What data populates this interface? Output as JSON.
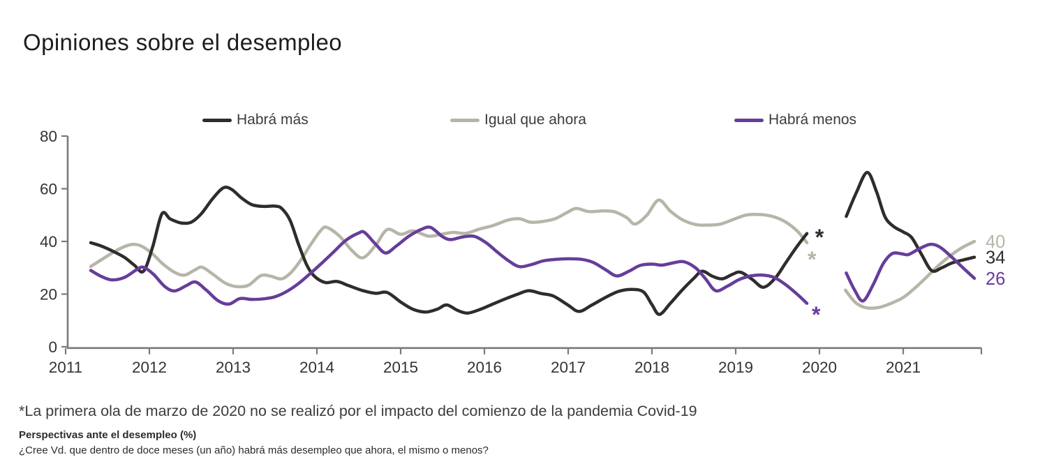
{
  "title": "Opiniones sobre el desempleo",
  "legend": [
    {
      "label": "Habrá más",
      "color": "#2f2c2b"
    },
    {
      "label": "Igual que ahora",
      "color": "#b6b5a7"
    },
    {
      "label": "Habrá menos",
      "color": "#663d9a"
    }
  ],
  "footnote": "*La primera ola de marzo de 2020 no se realizó por el impacto del comienzo de la pandemia Covid-19",
  "source_title": "Perspectivas ante el desempleo (%)",
  "source_question": "¿Cree Vd. que dentro de doce meses (un año) habrá más desempleo que ahora, el mismo o menos?",
  "axis_color": "#7a7a7a",
  "tick_label_color": "#333331",
  "chart_data": {
    "type": "line",
    "title": "Opiniones sobre el desempleo",
    "xlabel": "",
    "ylabel": "",
    "legend_position": "top",
    "grid": false,
    "xlim": [
      2011,
      2021.95
    ],
    "ylim": [
      0,
      80
    ],
    "x_tick_years": [
      2011,
      2012,
      2013,
      2014,
      2015,
      2016,
      2017,
      2018,
      2019,
      2020,
      2021
    ],
    "x_tick_labels": [
      "2011",
      "2012",
      "2013",
      "2014",
      "2015",
      "2016",
      "2017",
      "2018",
      "2019",
      "2020",
      "2021"
    ],
    "y_ticks": [
      0,
      20,
      40,
      60,
      80
    ],
    "y_tick_labels": [
      "0",
      "20",
      "40",
      "60",
      "80"
    ],
    "gap_note": "Gap in all series during first wave of March 2020 (survey not conducted), marked with asterisks",
    "asterisks": [
      {
        "series": "Habrá más",
        "symbol": "*",
        "color": "#2f2c2b",
        "x": 2020.0,
        "v": 44.2
      },
      {
        "series": "Igual que ahora",
        "symbol": "*",
        "color": "#b6b5a7",
        "x": 2019.91,
        "v": 35.8
      },
      {
        "series": "Habrá menos",
        "symbol": "*",
        "color": "#663d9a",
        "x": 2019.96,
        "v": 14.8
      }
    ],
    "series": [
      {
        "name": "Habrá más",
        "color": "#2f2c2b",
        "end_label": {
          "text": "34",
          "v": 34
        },
        "segments": [
          [
            [
              2011.3,
              39.5
            ],
            [
              2011.42,
              38.3
            ],
            [
              2011.55,
              36.5
            ],
            [
              2011.7,
              34.0
            ],
            [
              2011.82,
              31.0
            ],
            [
              2011.93,
              28.7
            ],
            [
              2012.04,
              38.0
            ],
            [
              2012.15,
              50.5
            ],
            [
              2012.25,
              48.5
            ],
            [
              2012.38,
              47.0
            ],
            [
              2012.5,
              47.3
            ],
            [
              2012.62,
              50.5
            ],
            [
              2012.75,
              56.0
            ],
            [
              2012.88,
              60.3
            ],
            [
              2012.98,
              59.8
            ],
            [
              2013.1,
              56.5
            ],
            [
              2013.22,
              54.0
            ],
            [
              2013.35,
              53.3
            ],
            [
              2013.5,
              53.4
            ],
            [
              2013.58,
              52.5
            ],
            [
              2013.68,
              48.0
            ],
            [
              2013.78,
              39.0
            ],
            [
              2013.88,
              31.0
            ],
            [
              2013.97,
              26.8
            ],
            [
              2014.1,
              24.4
            ],
            [
              2014.24,
              24.8
            ],
            [
              2014.38,
              23.2
            ],
            [
              2014.55,
              21.3
            ],
            [
              2014.7,
              20.3
            ],
            [
              2014.84,
              20.6
            ],
            [
              2015.0,
              17.0
            ],
            [
              2015.15,
              14.2
            ],
            [
              2015.3,
              13.2
            ],
            [
              2015.44,
              14.3
            ],
            [
              2015.55,
              15.9
            ],
            [
              2015.68,
              13.8
            ],
            [
              2015.8,
              12.8
            ],
            [
              2015.95,
              14.2
            ],
            [
              2016.1,
              16.2
            ],
            [
              2016.25,
              18.2
            ],
            [
              2016.4,
              20.0
            ],
            [
              2016.53,
              21.3
            ],
            [
              2016.68,
              20.2
            ],
            [
              2016.82,
              19.3
            ],
            [
              2017.0,
              15.8
            ],
            [
              2017.13,
              13.4
            ],
            [
              2017.28,
              15.8
            ],
            [
              2017.45,
              18.8
            ],
            [
              2017.6,
              21.0
            ],
            [
              2017.76,
              21.8
            ],
            [
              2017.9,
              20.8
            ],
            [
              2018.0,
              16.0
            ],
            [
              2018.09,
              12.3
            ],
            [
              2018.22,
              16.5
            ],
            [
              2018.36,
              21.5
            ],
            [
              2018.5,
              26.0
            ],
            [
              2018.6,
              28.7
            ],
            [
              2018.72,
              26.8
            ],
            [
              2018.84,
              25.8
            ],
            [
              2018.96,
              27.5
            ],
            [
              2019.06,
              28.3
            ],
            [
              2019.2,
              25.5
            ],
            [
              2019.33,
              22.6
            ],
            [
              2019.47,
              26.0
            ],
            [
              2019.6,
              32.0
            ],
            [
              2019.73,
              38.0
            ],
            [
              2019.85,
              43.0
            ]
          ],
          [
            [
              2020.32,
              49.5
            ],
            [
              2020.44,
              58.5
            ],
            [
              2020.57,
              66.2
            ],
            [
              2020.68,
              59.0
            ],
            [
              2020.78,
              49.5
            ],
            [
              2020.88,
              45.8
            ],
            [
              2021.0,
              43.6
            ],
            [
              2021.1,
              41.5
            ],
            [
              2021.22,
              35.0
            ],
            [
              2021.34,
              28.9
            ],
            [
              2021.46,
              30.0
            ],
            [
              2021.58,
              31.8
            ],
            [
              2021.72,
              33.0
            ],
            [
              2021.85,
              34.0
            ]
          ]
        ]
      },
      {
        "name": "Igual que ahora",
        "color": "#b6b5a7",
        "end_label": {
          "text": "40",
          "v": 40
        },
        "segments": [
          [
            [
              2011.3,
              30.5
            ],
            [
              2011.45,
              33.5
            ],
            [
              2011.62,
              36.8
            ],
            [
              2011.78,
              38.8
            ],
            [
              2011.9,
              38.3
            ],
            [
              2012.03,
              35.5
            ],
            [
              2012.16,
              31.5
            ],
            [
              2012.3,
              28.3
            ],
            [
              2012.42,
              27.2
            ],
            [
              2012.55,
              29.3
            ],
            [
              2012.63,
              30.2
            ],
            [
              2012.76,
              27.5
            ],
            [
              2012.9,
              24.3
            ],
            [
              2013.03,
              22.9
            ],
            [
              2013.18,
              23.3
            ],
            [
              2013.33,
              27.0
            ],
            [
              2013.45,
              26.8
            ],
            [
              2013.58,
              25.8
            ],
            [
              2013.7,
              28.5
            ],
            [
              2013.82,
              33.5
            ],
            [
              2013.93,
              39.0
            ],
            [
              2014.05,
              44.3
            ],
            [
              2014.12,
              45.3
            ],
            [
              2014.27,
              42.0
            ],
            [
              2014.42,
              36.5
            ],
            [
              2014.55,
              33.8
            ],
            [
              2014.7,
              38.5
            ],
            [
              2014.84,
              44.5
            ],
            [
              2015.0,
              42.7
            ],
            [
              2015.15,
              44.0
            ],
            [
              2015.33,
              42.0
            ],
            [
              2015.48,
              42.7
            ],
            [
              2015.62,
              43.4
            ],
            [
              2015.78,
              43.1
            ],
            [
              2015.94,
              44.7
            ],
            [
              2016.1,
              46.0
            ],
            [
              2016.28,
              48.1
            ],
            [
              2016.42,
              48.6
            ],
            [
              2016.55,
              47.3
            ],
            [
              2016.7,
              47.6
            ],
            [
              2016.85,
              48.7
            ],
            [
              2017.0,
              51.2
            ],
            [
              2017.1,
              52.5
            ],
            [
              2017.25,
              51.3
            ],
            [
              2017.42,
              51.6
            ],
            [
              2017.56,
              51.2
            ],
            [
              2017.7,
              49.0
            ],
            [
              2017.8,
              46.6
            ],
            [
              2017.94,
              50.0
            ],
            [
              2018.08,
              55.7
            ],
            [
              2018.22,
              51.5
            ],
            [
              2018.36,
              48.3
            ],
            [
              2018.52,
              46.4
            ],
            [
              2018.66,
              46.2
            ],
            [
              2018.82,
              46.6
            ],
            [
              2019.0,
              48.7
            ],
            [
              2019.14,
              50.1
            ],
            [
              2019.3,
              50.2
            ],
            [
              2019.45,
              49.4
            ],
            [
              2019.6,
              47.3
            ],
            [
              2019.74,
              43.8
            ],
            [
              2019.85,
              39.5
            ]
          ],
          [
            [
              2020.31,
              21.5
            ],
            [
              2020.43,
              16.8
            ],
            [
              2020.56,
              14.8
            ],
            [
              2020.7,
              14.9
            ],
            [
              2020.84,
              16.3
            ],
            [
              2021.0,
              18.7
            ],
            [
              2021.14,
              22.3
            ],
            [
              2021.28,
              26.5
            ],
            [
              2021.42,
              30.8
            ],
            [
              2021.56,
              34.5
            ],
            [
              2021.7,
              37.6
            ],
            [
              2021.85,
              40.0
            ]
          ]
        ]
      },
      {
        "name": "Habrá menos",
        "color": "#663d9a",
        "end_label": {
          "text": "26",
          "v": 26
        },
        "segments": [
          [
            [
              2011.3,
              29.0
            ],
            [
              2011.42,
              26.8
            ],
            [
              2011.55,
              25.4
            ],
            [
              2011.7,
              26.3
            ],
            [
              2011.85,
              29.3
            ],
            [
              2011.93,
              30.2
            ],
            [
              2012.05,
              27.5
            ],
            [
              2012.18,
              23.0
            ],
            [
              2012.3,
              21.2
            ],
            [
              2012.44,
              23.2
            ],
            [
              2012.55,
              24.6
            ],
            [
              2012.68,
              21.5
            ],
            [
              2012.82,
              17.5
            ],
            [
              2012.95,
              16.2
            ],
            [
              2013.08,
              18.3
            ],
            [
              2013.22,
              18.0
            ],
            [
              2013.36,
              18.2
            ],
            [
              2013.5,
              19.0
            ],
            [
              2013.64,
              21.0
            ],
            [
              2013.78,
              24.0
            ],
            [
              2013.92,
              27.8
            ],
            [
              2014.05,
              31.5
            ],
            [
              2014.2,
              36.0
            ],
            [
              2014.35,
              40.5
            ],
            [
              2014.5,
              43.2
            ],
            [
              2014.57,
              43.4
            ],
            [
              2014.7,
              39.0
            ],
            [
              2014.82,
              35.6
            ],
            [
              2014.95,
              38.3
            ],
            [
              2015.1,
              42.0
            ],
            [
              2015.25,
              44.6
            ],
            [
              2015.36,
              45.3
            ],
            [
              2015.5,
              41.8
            ],
            [
              2015.6,
              40.7
            ],
            [
              2015.74,
              41.7
            ],
            [
              2015.88,
              41.9
            ],
            [
              2016.02,
              39.5
            ],
            [
              2016.16,
              35.8
            ],
            [
              2016.3,
              32.4
            ],
            [
              2016.42,
              30.4
            ],
            [
              2016.56,
              31.2
            ],
            [
              2016.7,
              32.6
            ],
            [
              2016.85,
              33.2
            ],
            [
              2017.0,
              33.4
            ],
            [
              2017.16,
              33.2
            ],
            [
              2017.3,
              32.0
            ],
            [
              2017.45,
              29.2
            ],
            [
              2017.58,
              26.9
            ],
            [
              2017.72,
              28.6
            ],
            [
              2017.86,
              30.9
            ],
            [
              2018.0,
              31.4
            ],
            [
              2018.12,
              31.0
            ],
            [
              2018.26,
              31.9
            ],
            [
              2018.38,
              32.3
            ],
            [
              2018.52,
              30.0
            ],
            [
              2018.64,
              25.8
            ],
            [
              2018.76,
              21.3
            ],
            [
              2018.9,
              23.0
            ],
            [
              2019.04,
              25.5
            ],
            [
              2019.18,
              26.9
            ],
            [
              2019.32,
              27.2
            ],
            [
              2019.46,
              26.3
            ],
            [
              2019.6,
              23.5
            ],
            [
              2019.74,
              19.8
            ],
            [
              2019.85,
              16.5
            ]
          ],
          [
            [
              2020.32,
              28.0
            ],
            [
              2020.42,
              21.5
            ],
            [
              2020.52,
              17.4
            ],
            [
              2020.64,
              23.5
            ],
            [
              2020.76,
              31.5
            ],
            [
              2020.87,
              35.4
            ],
            [
              2020.98,
              35.3
            ],
            [
              2021.06,
              35.0
            ],
            [
              2021.18,
              37.0
            ],
            [
              2021.32,
              38.9
            ],
            [
              2021.44,
              37.8
            ],
            [
              2021.58,
              34.0
            ],
            [
              2021.72,
              29.8
            ],
            [
              2021.85,
              26.0
            ]
          ]
        ]
      }
    ]
  }
}
